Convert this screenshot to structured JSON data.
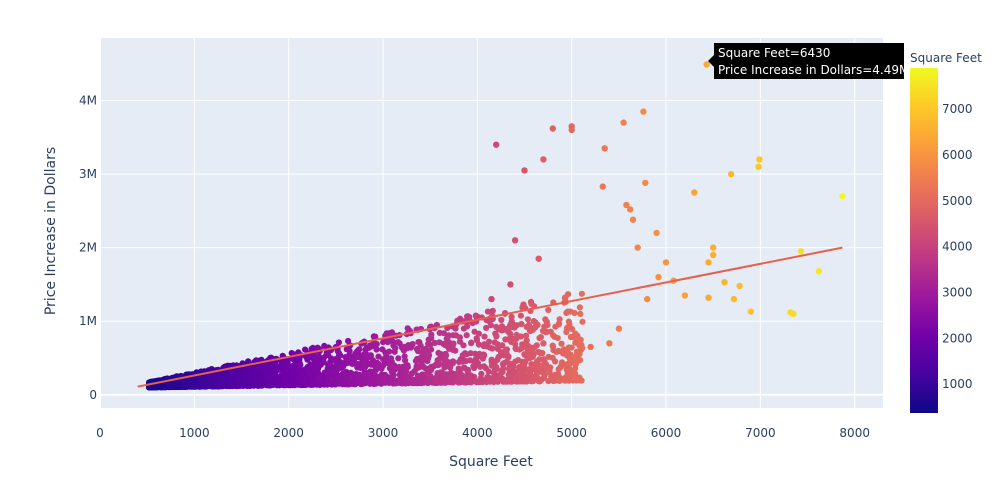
{
  "chart_data": {
    "type": "scatter",
    "xlabel": "Square Feet",
    "ylabel": "Price Increase in Dollars",
    "xlim": [
      0,
      8300
    ],
    "ylim": [
      -180000,
      4850000
    ],
    "x_ticks": [
      0,
      1000,
      2000,
      3000,
      4000,
      5000,
      6000,
      7000,
      8000
    ],
    "x_tick_labels": [
      "0",
      "1000",
      "2000",
      "3000",
      "4000",
      "5000",
      "6000",
      "7000",
      "8000"
    ],
    "y_ticks": [
      0,
      1000000,
      2000000,
      3000000,
      4000000
    ],
    "y_tick_labels": [
      "0",
      "1M",
      "2M",
      "3M",
      "4M"
    ],
    "grid": true,
    "colorscale": "plasma",
    "colorbar": {
      "title": "Square Feet",
      "range": [
        370,
        7900
      ],
      "ticks": [
        1000,
        2000,
        3000,
        4000,
        5000,
        6000,
        7000
      ],
      "tick_labels": [
        "1000",
        "2000",
        "3000",
        "4000",
        "5000",
        "6000",
        "7000"
      ]
    },
    "series": [
      {
        "type": "scatter",
        "color_by": "x",
        "points": [
          [
            6430,
            4490000
          ],
          [
            5760,
            3850000
          ],
          [
            5550,
            3700000
          ],
          [
            5000,
            3650000
          ],
          [
            5000,
            3600000
          ],
          [
            4800,
            3620000
          ],
          [
            5350,
            3350000
          ],
          [
            4700,
            3200000
          ],
          [
            4200,
            3400000
          ],
          [
            4500,
            3050000
          ],
          [
            5780,
            2880000
          ],
          [
            5330,
            2830000
          ],
          [
            5620,
            2520000
          ],
          [
            5580,
            2580000
          ],
          [
            5650,
            2380000
          ],
          [
            5900,
            2200000
          ],
          [
            5700,
            2000000
          ],
          [
            6300,
            2750000
          ],
          [
            6690,
            3000000
          ],
          [
            6990,
            3200000
          ],
          [
            6980,
            3100000
          ],
          [
            7870,
            2700000
          ],
          [
            6500,
            2000000
          ],
          [
            6450,
            1800000
          ],
          [
            6500,
            1900000
          ],
          [
            6780,
            1480000
          ],
          [
            6720,
            1300000
          ],
          [
            6900,
            1130000
          ],
          [
            7320,
            1120000
          ],
          [
            7350,
            1100000
          ],
          [
            7620,
            1680000
          ],
          [
            7430,
            1950000
          ],
          [
            6620,
            1530000
          ],
          [
            6450,
            1320000
          ],
          [
            6200,
            1350000
          ],
          [
            6080,
            1550000
          ],
          [
            6000,
            1800000
          ],
          [
            5920,
            1600000
          ],
          [
            5800,
            1300000
          ],
          [
            5500,
            900000
          ],
          [
            5400,
            700000
          ],
          [
            5200,
            650000
          ],
          [
            5050,
            450000
          ],
          [
            4700,
            700000
          ],
          [
            4500,
            550000
          ],
          [
            4300,
            600000
          ],
          [
            4150,
            1300000
          ],
          [
            4350,
            1500000
          ],
          [
            4650,
            1850000
          ],
          [
            4400,
            2100000
          ]
        ]
      },
      {
        "type": "line",
        "name": "",
        "color": "#e8604c",
        "x": [
          400,
          7870
        ],
        "y": [
          110000,
          2000000
        ]
      }
    ],
    "tooltip": {
      "lines": [
        "Square Feet=6430",
        "Price Increase in Dollars=4.49M"
      ],
      "point": [
        6430,
        4490000
      ]
    }
  }
}
